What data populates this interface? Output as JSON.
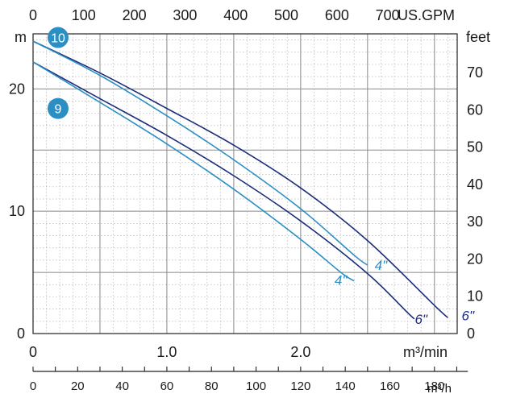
{
  "chart_data": {
    "type": "line",
    "title": "",
    "x_unit_primary": "m³/min",
    "x_unit_top": "US.GPM",
    "x_unit_bottom": "m³/h",
    "y_unit_left": "m",
    "y_unit_right": "feet",
    "xlim": [
      0,
      3.17
    ],
    "ylim": [
      0,
      24.5
    ],
    "x_ticks_primary": [
      {
        "v": 0,
        "label": "0"
      },
      {
        "v": 1.0,
        "label": "1.0"
      },
      {
        "v": 2.0,
        "label": "2.0"
      }
    ],
    "x_ticks_top": [
      {
        "v": 0,
        "label": "0"
      },
      {
        "v": 100,
        "label": "100"
      },
      {
        "v": 200,
        "label": "200"
      },
      {
        "v": 300,
        "label": "300"
      },
      {
        "v": 400,
        "label": "400"
      },
      {
        "v": 500,
        "label": "500"
      },
      {
        "v": 600,
        "label": "600"
      },
      {
        "v": 700,
        "label": "700"
      }
    ],
    "x_ticks_bottom": [
      {
        "v": 0,
        "label": "0"
      },
      {
        "v": 20,
        "label": "20"
      },
      {
        "v": 40,
        "label": "40"
      },
      {
        "v": 60,
        "label": "60"
      },
      {
        "v": 80,
        "label": "80"
      },
      {
        "v": 100,
        "label": "100"
      },
      {
        "v": 120,
        "label": "120"
      },
      {
        "v": 140,
        "label": "140"
      },
      {
        "v": 160,
        "label": "160"
      },
      {
        "v": 180,
        "label": "180"
      }
    ],
    "y_ticks_left": [
      {
        "v": 0,
        "label": "0"
      },
      {
        "v": 10,
        "label": "10"
      },
      {
        "v": 20,
        "label": "20"
      }
    ],
    "y_ticks_right": [
      {
        "v": 0,
        "label": "0"
      },
      {
        "v": 10,
        "label": "10"
      },
      {
        "v": 20,
        "label": "20"
      },
      {
        "v": 30,
        "label": "30"
      },
      {
        "v": 40,
        "label": "40"
      },
      {
        "v": 50,
        "label": "50"
      },
      {
        "v": 60,
        "label": "60"
      },
      {
        "v": 70,
        "label": "70"
      }
    ],
    "grid": true,
    "series": [
      {
        "group": "10",
        "label": "6\"",
        "color": "#1c2d7a",
        "points": [
          [
            0,
            23.9
          ],
          [
            0.5,
            21.3
          ],
          [
            1.0,
            18.4
          ],
          [
            1.5,
            15.4
          ],
          [
            2.0,
            11.9
          ],
          [
            2.5,
            7.6
          ],
          [
            3.0,
            2.3
          ],
          [
            3.1,
            1.3
          ]
        ]
      },
      {
        "group": "10",
        "label": "4\"",
        "color": "#2b8fc4",
        "points": [
          [
            0,
            23.9
          ],
          [
            0.5,
            21.1
          ],
          [
            1.0,
            17.8
          ],
          [
            1.5,
            14.2
          ],
          [
            2.0,
            10.2
          ],
          [
            2.4,
            6.4
          ],
          [
            2.5,
            5.6
          ]
        ]
      },
      {
        "group": "9",
        "label": "6\"",
        "color": "#1c2d7a",
        "points": [
          [
            0,
            22.2
          ],
          [
            0.5,
            19.2
          ],
          [
            1.0,
            16.2
          ],
          [
            1.5,
            12.9
          ],
          [
            2.0,
            9.2
          ],
          [
            2.5,
            4.9
          ],
          [
            2.8,
            1.7
          ],
          [
            2.85,
            1.2
          ]
        ]
      },
      {
        "group": "9",
        "label": "4\"",
        "color": "#2b8fc4",
        "points": [
          [
            0,
            22.2
          ],
          [
            0.5,
            18.9
          ],
          [
            1.0,
            15.5
          ],
          [
            1.5,
            11.8
          ],
          [
            2.0,
            7.7
          ],
          [
            2.3,
            5.0
          ],
          [
            2.4,
            4.3
          ]
        ]
      }
    ],
    "badges": [
      {
        "label": "10",
        "at_y": 24.2
      },
      {
        "label": "9",
        "at_y": 18.4
      }
    ],
    "curve_labels": [
      {
        "text": "6\"",
        "x": 3.25,
        "y": 1.1,
        "color": "#1c2d7a"
      },
      {
        "text": "4\"",
        "x": 2.6,
        "y": 5.2,
        "color": "#2b8fc4"
      },
      {
        "text": "4\"",
        "x": 2.3,
        "y": 4.0,
        "color": "#2b8fc4"
      },
      {
        "text": "6\"",
        "x": 2.9,
        "y": 0.8,
        "color": "#1c2d7a"
      }
    ],
    "colors": {
      "dark_blue": "#1c2d7a",
      "light_blue": "#2b8fc4",
      "badge": "#2b8fc4",
      "grid": "#9a9a9a"
    }
  }
}
